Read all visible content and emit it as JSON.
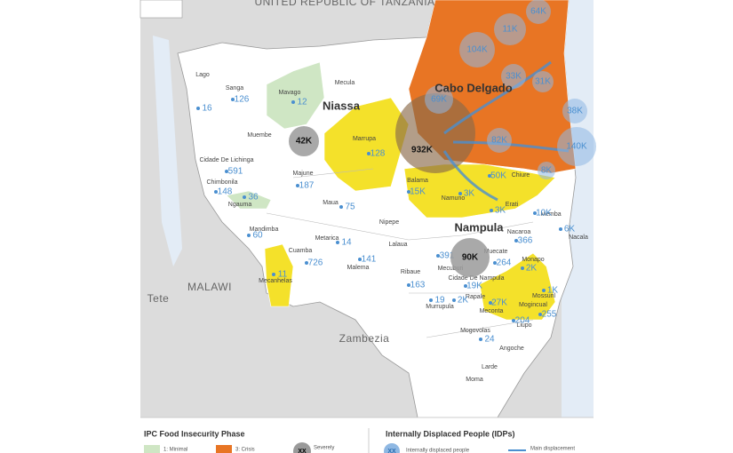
{
  "countries": [
    "UNITED REPUBLIC OF TANZANIA",
    "MALAWI",
    "Tete",
    "Zambezia"
  ],
  "provinces": [
    {
      "name": "Niassa",
      "idp": "42K"
    },
    {
      "name": "Cabo Delgado",
      "idp": "932K"
    },
    {
      "name": "Nampula",
      "idp": "90K"
    }
  ],
  "districts": [
    {
      "name": "Lago",
      "idp": "16"
    },
    {
      "name": "Sanga",
      "idp": "126"
    },
    {
      "name": "Mavago",
      "idp": "12"
    },
    {
      "name": "Mecula"
    },
    {
      "name": "Muembe"
    },
    {
      "name": "Marrupa",
      "idp": "128"
    },
    {
      "name": "Cidade De Lichinga",
      "idp": "591"
    },
    {
      "name": "Chimbonila",
      "idp": "148"
    },
    {
      "name": "Ngauma",
      "idp": "36"
    },
    {
      "name": "Majune",
      "idp": "187"
    },
    {
      "name": "Maua",
      "idp": "75"
    },
    {
      "name": "Nipepe"
    },
    {
      "name": "Mandimba",
      "idp": "60"
    },
    {
      "name": "Metarica",
      "idp": "14"
    },
    {
      "name": "Lalaua"
    },
    {
      "name": "Cuamba",
      "idp": "726"
    },
    {
      "name": "Malema",
      "idp": "141"
    },
    {
      "name": "Mecanhelas",
      "idp": "11"
    },
    {
      "name": "Ribaue",
      "idp": "163"
    },
    {
      "name": "Mecuburi",
      "idp": "391"
    },
    {
      "name": "Muecate",
      "idp": "264"
    },
    {
      "name": "Nacaroa",
      "idp": "366"
    },
    {
      "name": "Monapo",
      "idp": "2K"
    },
    {
      "name": "Cidade De Nampula",
      "idp": "19K"
    },
    {
      "name": "Rapale",
      "idp": "2K"
    },
    {
      "name": "Murrupula",
      "idp": "19"
    },
    {
      "name": "Meconta",
      "idp": "27K"
    },
    {
      "name": "Mogincual"
    },
    {
      "name": "Mossuril",
      "idp": "1K"
    },
    {
      "name": "Mogovolas",
      "idp": "24"
    },
    {
      "name": "Liupo",
      "idp": "204"
    },
    {
      "name": "Angoche",
      "idp": "255"
    },
    {
      "name": "Larde"
    },
    {
      "name": "Moma"
    },
    {
      "name": "Erati",
      "idp": "3K"
    },
    {
      "name": "Chiure",
      "idp": "50K"
    },
    {
      "name": "Namuno",
      "idp": "3K"
    },
    {
      "name": "Balama",
      "idp": "15K"
    },
    {
      "name": "Memba",
      "idp": "10K"
    },
    {
      "name": "Nacala",
      "idp": "6K"
    }
  ],
  "cabo_delgado_idps": [
    "64K",
    "11K",
    "104K",
    "33K",
    "31K",
    "38K",
    "69K",
    "82K",
    "140K",
    "8K"
  ],
  "legend": {
    "ipc_title": "IPC Food Insecurity Phase",
    "phases": [
      "1: Minimal",
      "3: Crisis"
    ],
    "severe_symbol": "XX",
    "severe_label": "Severely",
    "idp_title": "Internally Displaced People (IDPs)",
    "idp_symbol": "XX",
    "idp_label": "Internally displaced people",
    "movement_label": "Main displacement"
  }
}
